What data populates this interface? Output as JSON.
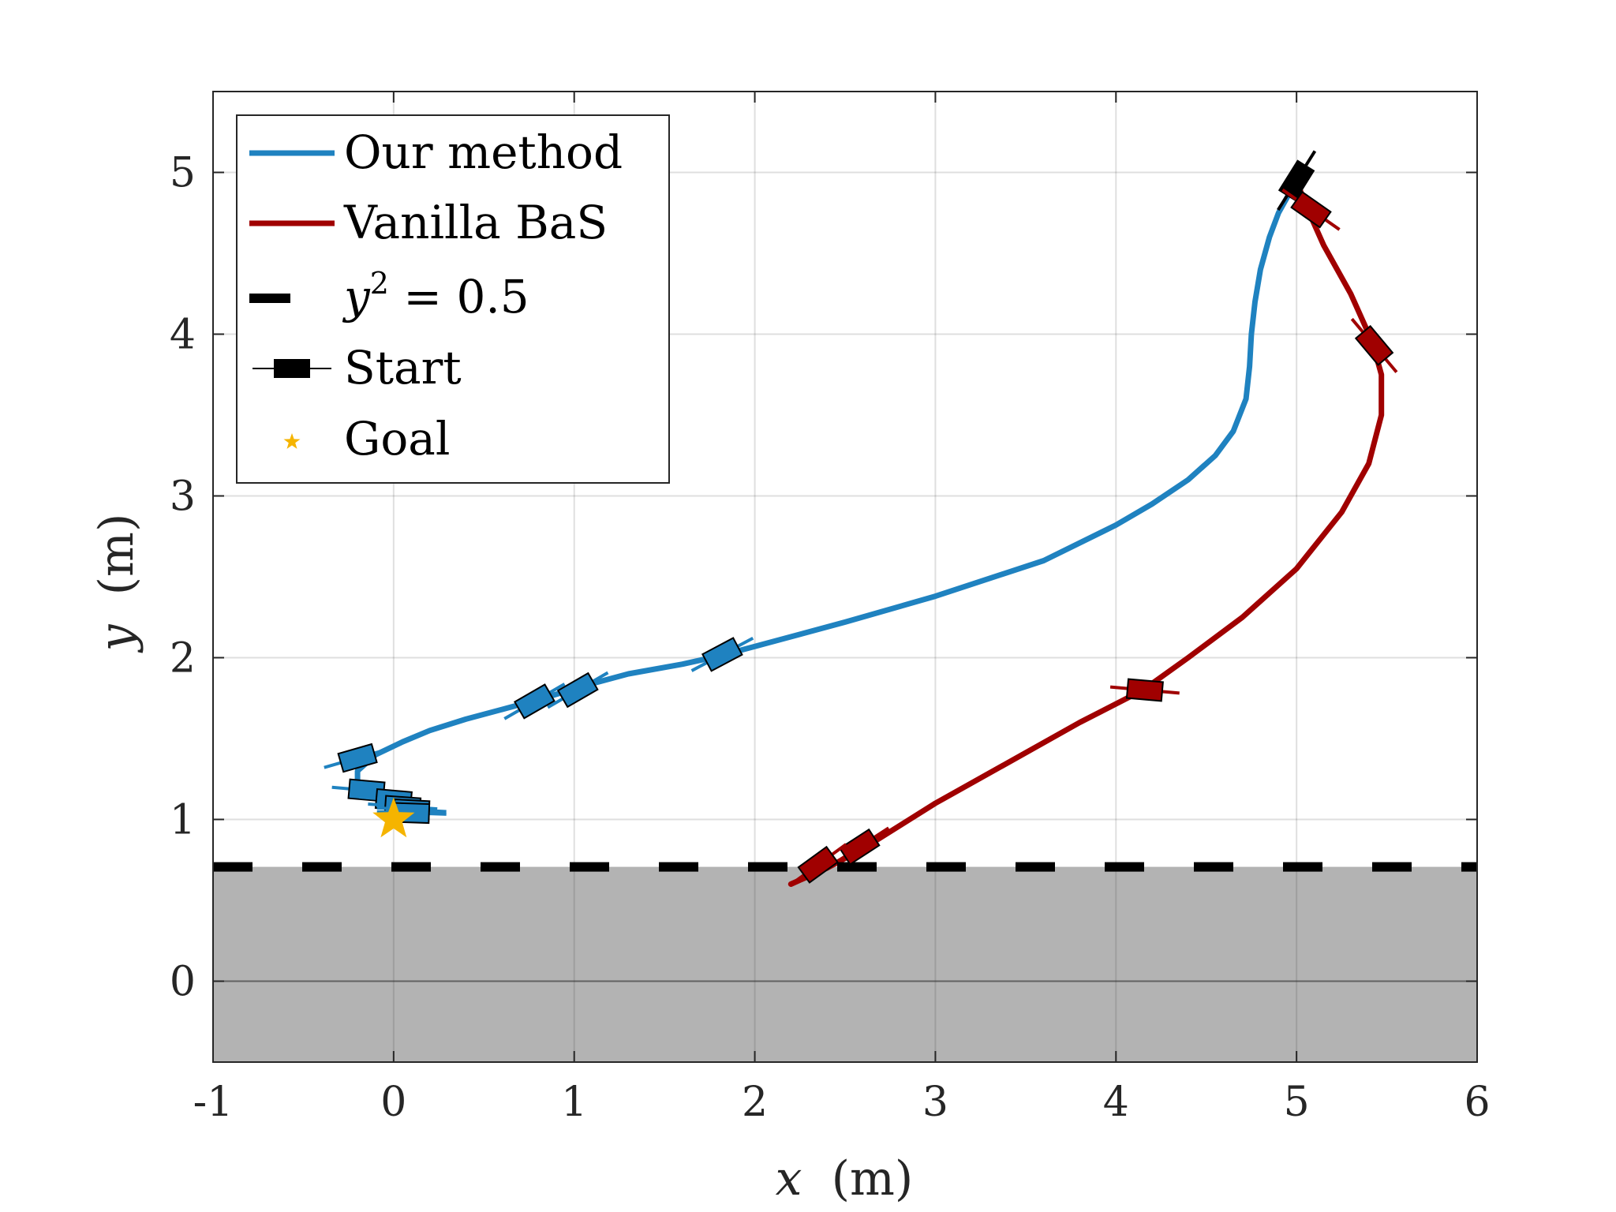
{
  "chart_data": {
    "type": "line",
    "xlabel_var": "x",
    "xlabel_unit": "(m)",
    "ylabel_var": "y",
    "ylabel_unit": "(m)",
    "xlim": [
      -1,
      6
    ],
    "ylim": [
      -0.5,
      5.5
    ],
    "xticks": [
      -1,
      0,
      1,
      2,
      3,
      4,
      5,
      6
    ],
    "xtick_labels": [
      "-1",
      "0",
      "1",
      "2",
      "3",
      "4",
      "5",
      "6"
    ],
    "yticks": [
      0,
      1,
      2,
      3,
      4,
      5
    ],
    "ytick_labels": [
      "0",
      "1",
      "2",
      "3",
      "4",
      "5"
    ],
    "grid": true,
    "legend_position": "top-left",
    "obstacle": {
      "y_max": 0.707,
      "color": "#b3b3b3",
      "line_color": "#000000"
    },
    "series": [
      {
        "name": "Our method",
        "color": "#1f82c0",
        "x": [
          5.0,
          4.95,
          4.9,
          4.85,
          4.8,
          4.77,
          4.75,
          4.74,
          4.72,
          4.65,
          4.55,
          4.4,
          4.2,
          4.0,
          3.6,
          3.0,
          2.5,
          2.0,
          1.8,
          1.6,
          1.3,
          1.1,
          0.95,
          0.8,
          0.6,
          0.4,
          0.2,
          0.05,
          -0.1,
          -0.2,
          -0.2,
          -0.15,
          -0.05,
          0.05,
          0.1,
          0.12,
          0.05,
          0.0
        ],
        "y": [
          4.95,
          4.85,
          4.75,
          4.6,
          4.4,
          4.2,
          4.0,
          3.8,
          3.6,
          3.4,
          3.25,
          3.1,
          2.95,
          2.82,
          2.6,
          2.38,
          2.22,
          2.07,
          2.01,
          1.96,
          1.9,
          1.84,
          1.79,
          1.74,
          1.68,
          1.62,
          1.55,
          1.48,
          1.4,
          1.3,
          1.22,
          1.17,
          1.13,
          1.1,
          1.07,
          1.05,
          1.03,
          1.0
        ],
        "markers": [
          {
            "x": 5.0,
            "y": 4.95,
            "angle": 58,
            "color": "#000000"
          },
          {
            "x": 1.82,
            "y": 2.02,
            "angle": 28
          },
          {
            "x": 1.02,
            "y": 1.8,
            "angle": 30
          },
          {
            "x": 0.78,
            "y": 1.73,
            "angle": 30
          },
          {
            "x": -0.2,
            "y": 1.38,
            "angle": 16
          },
          {
            "x": -0.15,
            "y": 1.18,
            "angle": -5
          },
          {
            "x": 0.0,
            "y": 1.12,
            "angle": -5
          },
          {
            "x": 0.05,
            "y": 1.08,
            "angle": -4
          },
          {
            "x": 0.1,
            "y": 1.06,
            "angle": -3
          },
          {
            "x": 0.1,
            "y": 1.04,
            "angle": -2
          }
        ]
      },
      {
        "name": "Vanilla BaS",
        "color": "#a00000",
        "x": [
          5.0,
          5.05,
          5.15,
          5.3,
          5.42,
          5.47,
          5.47,
          5.4,
          5.25,
          5.0,
          4.7,
          4.4,
          4.15,
          3.8,
          3.4,
          3.0,
          2.6,
          2.4,
          2.2
        ],
        "y": [
          4.95,
          4.8,
          4.55,
          4.25,
          3.95,
          3.75,
          3.5,
          3.2,
          2.9,
          2.55,
          2.25,
          2.0,
          1.8,
          1.6,
          1.35,
          1.1,
          0.82,
          0.7,
          0.6
        ],
        "markers": [
          {
            "x": 5.08,
            "y": 4.77,
            "angle": -35
          },
          {
            "x": 5.43,
            "y": 3.93,
            "angle": -50
          },
          {
            "x": 4.16,
            "y": 1.8,
            "angle": -5
          },
          {
            "x": 2.58,
            "y": 0.83,
            "angle": 33
          },
          {
            "x": 2.35,
            "y": 0.72,
            "angle": 36
          }
        ]
      },
      {
        "name": "y² = 0.5",
        "color": "#000000",
        "dashed": true,
        "x": [
          -1,
          6
        ],
        "y": [
          0.707,
          0.707
        ]
      }
    ],
    "goal": {
      "x": 0,
      "y": 1,
      "color": "#f5b400"
    },
    "legend": {
      "entries": [
        {
          "label": "Our method"
        },
        {
          "label": "Vanilla BaS"
        },
        {
          "label_prefix": "y",
          "label_sup": "2",
          "label_suffix": " = 0.5"
        },
        {
          "label": "Start"
        },
        {
          "label": "Goal"
        }
      ]
    }
  }
}
